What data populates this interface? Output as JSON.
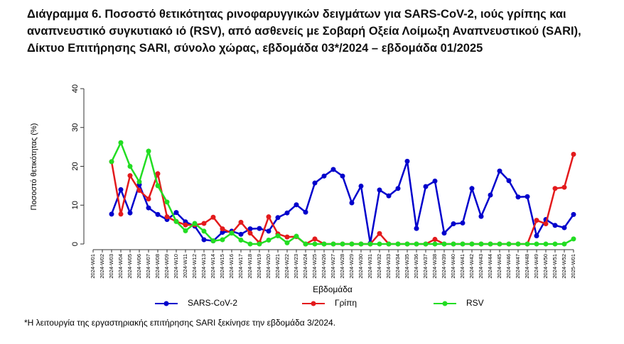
{
  "chart_data": {
    "type": "line",
    "title": "Διάγραμμα 6. Ποσοστό θετικότητας ρινοφαρυγγικών δειγμάτων για SARS-CoV-2, ιούς γρίπης και αναπνευστικό συγκυτιακό ιό (RSV), από ασθενείς με Σοβαρή Οξεία Λοίμωξη Αναπνευστικού (SARI), Δίκτυο Επιτήρησης SARI, σύνολο χώρας, εβδομάδα 03*/2024 – εβδομάδα 01/2025",
    "x_label": "Εβδομάδα",
    "y_label": "Ποσοστό θετικότητας (%)",
    "footnote": "*Η λειτουργία της εργαστηριακής επιτήρησης SARI ξεκίνησε την εβδομάδα 3/2024.",
    "categories": [
      "2024-W01",
      "2024-W02",
      "2024-W03",
      "2024-W04",
      "2024-W05",
      "2024-W06",
      "2024-W07",
      "2024-W08",
      "2024-W09",
      "2024-W10",
      "2024-W11",
      "2024-W12",
      "2024-W13",
      "2024-W14",
      "2024-W15",
      "2024-W16",
      "2024-W17",
      "2024-W18",
      "2024-W19",
      "2024-W20",
      "2024-W21",
      "2024-W22",
      "2024-W23",
      "2024-W24",
      "2024-W25",
      "2024-W26",
      "2024-W27",
      "2024-W28",
      "2024-W29",
      "2024-W30",
      "2024-W31",
      "2024-W32",
      "2024-W33",
      "2024-W34",
      "2024-W35",
      "2024-W36",
      "2024-W37",
      "2024-W38",
      "2024-W39",
      "2024-W40",
      "2024-W41",
      "2024-W42",
      "2024-W43",
      "2024-W44",
      "2024-W45",
      "2024-W46",
      "2024-W47",
      "2024-W48",
      "2024-W49",
      "2024-W50",
      "2024-W51",
      "2024-W52",
      "2025-W01"
    ],
    "series": [
      {
        "name": "SARS-CoV-2",
        "color": "#0000cc",
        "values": [
          null,
          null,
          7.7,
          14,
          8,
          15.3,
          9.3,
          7.6,
          6.3,
          8.1,
          5.7,
          4.6,
          1.1,
          0.8,
          3.0,
          3.3,
          2.5,
          3.9,
          4.0,
          3.3,
          6.8,
          8.0,
          10.1,
          8.2,
          15.7,
          17.5,
          19.2,
          17.5,
          10.6,
          14.9,
          0.2,
          13.9,
          12.4,
          14.3,
          21.3,
          4.0,
          14.8,
          16.2,
          2.8,
          5.2,
          5.4,
          14.3,
          7.1,
          12.6,
          18.8,
          16.3,
          12.1,
          12.2,
          2.1,
          6.3,
          4.8,
          4.2,
          7.6
        ]
      },
      {
        "name": "Γρίπη",
        "color": "#e31a1c",
        "values": [
          null,
          null,
          21.2,
          7.7,
          17.6,
          13.8,
          11.6,
          18.1,
          7.0,
          5.8,
          4.9,
          4.9,
          5.3,
          6.9,
          3.9,
          2.8,
          5.6,
          2.8,
          0.3,
          7.0,
          2.6,
          1.8,
          1.9,
          0,
          1.3,
          0,
          0,
          0,
          0,
          0,
          0,
          2.7,
          0,
          0,
          0,
          0,
          0,
          1.2,
          0,
          0,
          0,
          0,
          0,
          0,
          0,
          0,
          0,
          0,
          6.1,
          5.2,
          14.3,
          14.6,
          23.1
        ]
      },
      {
        "name": "RSV",
        "color": "#22dd22",
        "values": [
          null,
          null,
          21.2,
          26.1,
          20.0,
          16.0,
          23.9,
          15.0,
          10.8,
          5.8,
          3.4,
          5.3,
          3.3,
          0.8,
          1.1,
          2.8,
          1.0,
          0,
          0,
          1.0,
          2.1,
          0.3,
          2.0,
          0,
          0,
          0,
          0,
          0,
          0,
          0,
          0,
          0,
          0,
          0,
          0,
          0,
          0,
          0,
          0,
          0,
          0,
          0,
          0,
          0,
          0,
          0,
          0,
          0,
          0,
          0,
          0,
          0,
          1.3
        ]
      }
    ],
    "ylim": [
      0,
      40
    ],
    "yticks": [
      0,
      10,
      20,
      30,
      40
    ],
    "grid": false,
    "legend": "bottom"
  }
}
